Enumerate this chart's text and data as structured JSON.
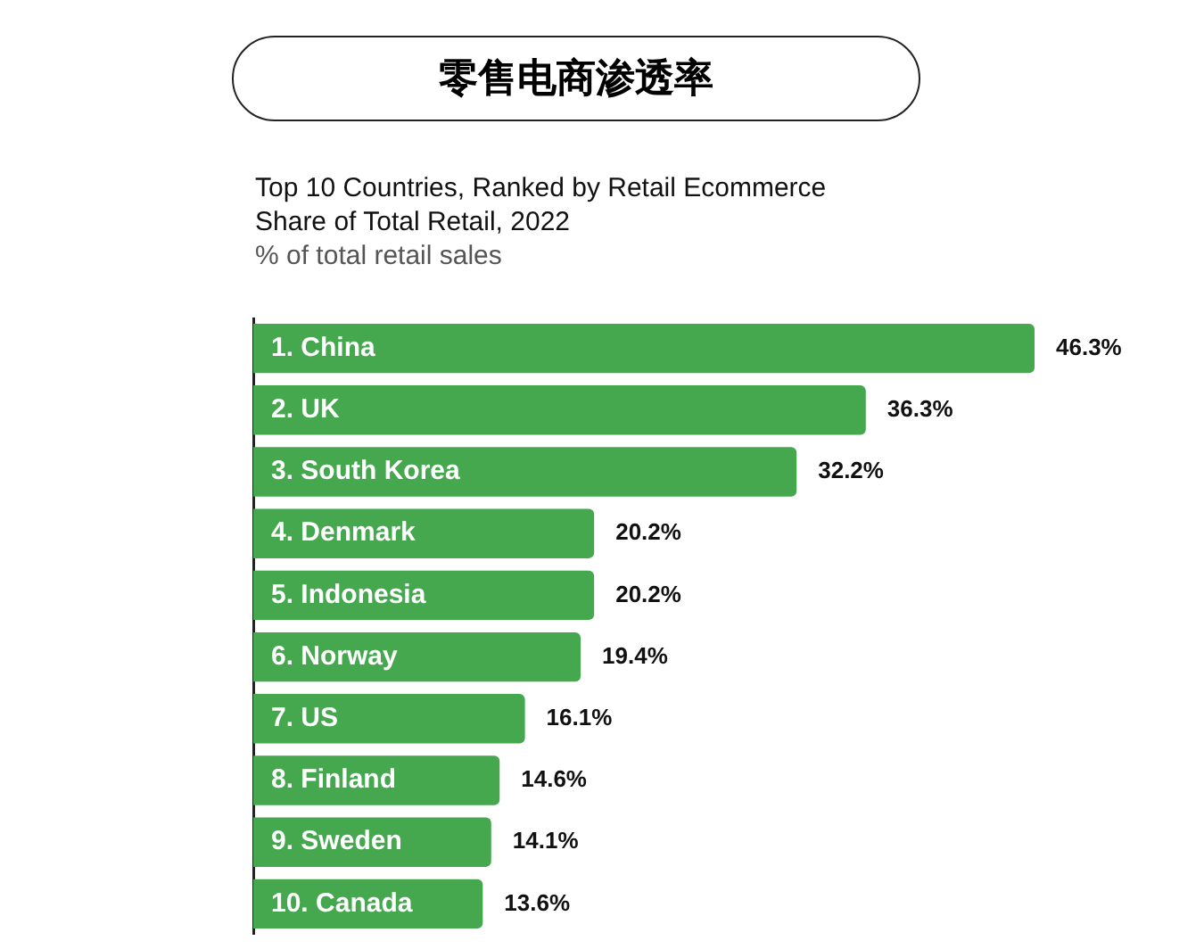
{
  "chart_data": {
    "type": "bar",
    "orientation": "horizontal",
    "title": "零售电商渗透率",
    "subtitle": "Top 10 Countries, Ranked by Retail Ecommerce Share of Total Retail, 2022",
    "xlabel": "% of total retail sales",
    "categories": [
      "1. China",
      "2. UK",
      "3. South Korea",
      "4. Denmark",
      "5. Indonesia",
      "6. Norway",
      "7. US",
      "8. Finland",
      "9. Sweden",
      "10. Canada"
    ],
    "values": [
      46.3,
      36.3,
      32.2,
      20.2,
      20.2,
      19.4,
      16.1,
      14.6,
      14.1,
      13.6
    ],
    "value_labels": [
      "46.3%",
      "36.3%",
      "32.2%",
      "20.2%",
      "20.2%",
      "19.4%",
      "16.1%",
      "14.6%",
      "14.1%",
      "13.6%"
    ],
    "color": "#45a84f"
  }
}
